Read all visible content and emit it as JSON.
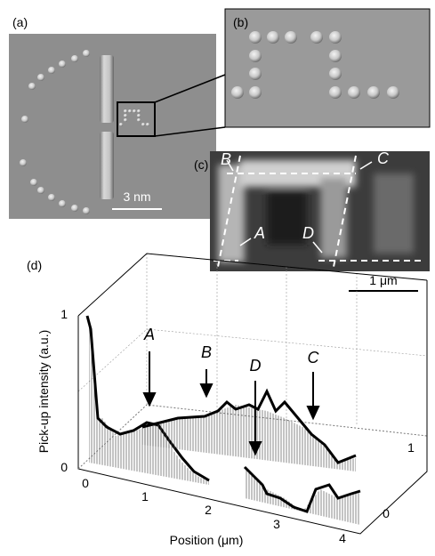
{
  "panels": {
    "a": {
      "label": "(a)",
      "scale_bar": "3 nm"
    },
    "b": {
      "label": "(b)"
    },
    "c": {
      "label": "(c)",
      "markers": [
        "B",
        "C",
        "A",
        "D"
      ],
      "scale_bar": "1 μm"
    },
    "d": {
      "label": "(d)",
      "y_axis_label": "Pick-up intensity (a.u.)",
      "x_axis_label": "Position (μm)",
      "x_ticks": [
        0,
        1,
        2,
        3,
        4
      ],
      "z_ticks": [
        0,
        1
      ],
      "depth_ticks": [
        0,
        1
      ],
      "markers": [
        "A",
        "B",
        "D",
        "C"
      ]
    }
  }
}
